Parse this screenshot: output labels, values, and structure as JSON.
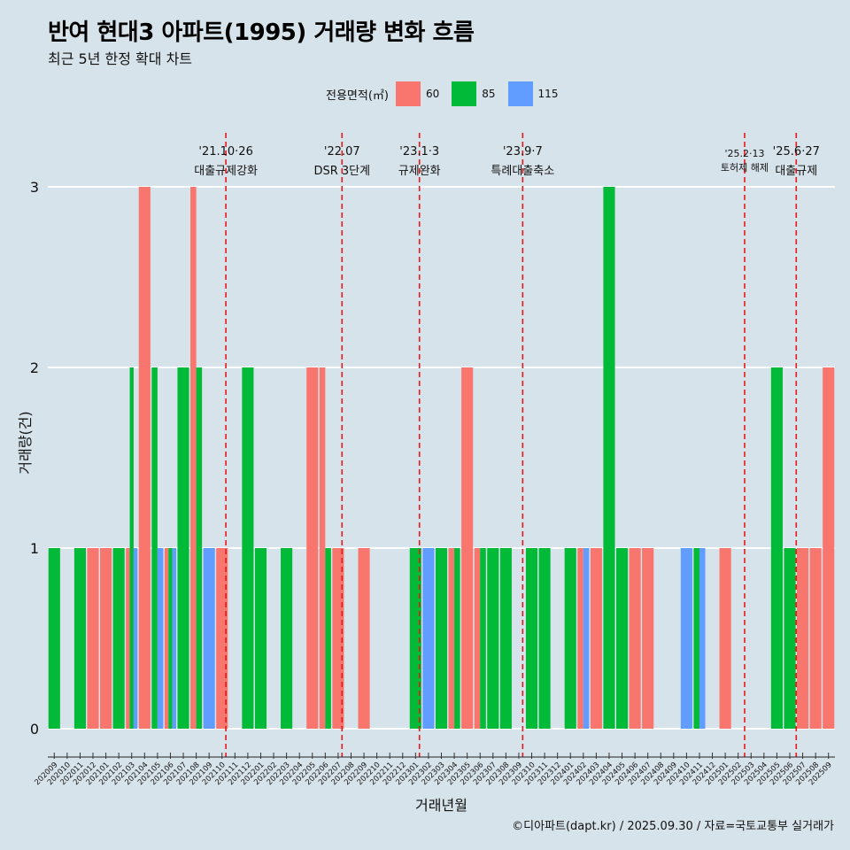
{
  "title": "반여 현대3 아파트(1995) 거래량 변화 흐름",
  "subtitle": "최근 5년 한정 확대 차트",
  "caption": "©디아파트(dapt.kr) / 2025.09.30 / 자료=국토교통부 실거래가",
  "legend": {
    "title": "전용면적(㎡)",
    "items": [
      {
        "label": "60",
        "color": "#f8766d"
      },
      {
        "label": "85",
        "color": "#00ba38"
      },
      {
        "label": "115",
        "color": "#619cff"
      }
    ]
  },
  "chart_data": {
    "type": "bar",
    "xlabel": "거래년월",
    "ylabel": "거래량(건)",
    "ylim": [
      0,
      3
    ],
    "yticks": [
      0,
      1,
      2,
      3
    ],
    "series_colors": {
      "60": "#f8766d",
      "85": "#00ba38",
      "115": "#619cff"
    },
    "months": [
      "202009",
      "202010",
      "202011",
      "202012",
      "202101",
      "202102",
      "202103",
      "202104",
      "202105",
      "202106",
      "202107",
      "202108",
      "202109",
      "202110",
      "202111",
      "202112",
      "202201",
      "202202",
      "202203",
      "202204",
      "202205",
      "202206",
      "202207",
      "202208",
      "202209",
      "202210",
      "202211",
      "202212",
      "202301",
      "202302",
      "202303",
      "202304",
      "202305",
      "202306",
      "202307",
      "202308",
      "202309",
      "202310",
      "202311",
      "202312",
      "202401",
      "202402",
      "202403",
      "202404",
      "202405",
      "202406",
      "202407",
      "202408",
      "202409",
      "202410",
      "202411",
      "202412",
      "202501",
      "202502",
      "202503",
      "202504",
      "202505",
      "202506",
      "202507",
      "202508",
      "202509"
    ],
    "tick_labels": [
      "202009",
      "202010",
      "202011",
      "202012",
      "202101",
      "202102",
      "202103",
      "202104",
      "202105",
      "202106",
      "202107",
      "202108",
      "202109",
      "202110",
      "202111",
      "202112",
      "202201",
      "202202",
      "202203",
      "202204",
      "202205",
      "202206",
      "202207",
      "202208",
      "202209",
      "202210",
      "202211",
      "202212",
      "202301",
      "202302",
      "202303",
      "202304",
      "202305",
      "202306",
      "202307",
      "202308",
      "202309",
      "202310",
      "202311",
      "202312",
      "202401",
      "202402",
      "202403",
      "202404",
      "202405",
      "202406",
      "202407",
      "202408",
      "202409",
      "202410",
      "202411",
      "202412",
      "202501",
      "202502",
      "202503",
      "202504",
      "202505",
      "202506",
      "202507",
      "202508",
      "202509"
    ],
    "bars": [
      {
        "month": "202009",
        "groups": [
          {
            "area": "85",
            "value": 1
          }
        ]
      },
      {
        "month": "202011",
        "groups": [
          {
            "area": "85",
            "value": 1
          }
        ]
      },
      {
        "month": "202012",
        "groups": [
          {
            "area": "60",
            "value": 1
          }
        ]
      },
      {
        "month": "202101",
        "groups": [
          {
            "area": "60",
            "value": 1
          }
        ]
      },
      {
        "month": "202102",
        "groups": [
          {
            "area": "85",
            "value": 1
          }
        ]
      },
      {
        "month": "202103",
        "groups": [
          {
            "area": "60",
            "value": 1
          },
          {
            "area": "85",
            "value": 2
          },
          {
            "area": "115",
            "value": 1
          }
        ]
      },
      {
        "month": "202104",
        "groups": [
          {
            "area": "60",
            "value": 3
          }
        ]
      },
      {
        "month": "202105",
        "groups": [
          {
            "area": "85",
            "value": 2
          },
          {
            "area": "115",
            "value": 1
          }
        ]
      },
      {
        "month": "202106",
        "groups": [
          {
            "area": "60",
            "value": 1
          },
          {
            "area": "85",
            "value": 1
          },
          {
            "area": "115",
            "value": 1
          }
        ]
      },
      {
        "month": "202107",
        "groups": [
          {
            "area": "85",
            "value": 2
          }
        ]
      },
      {
        "month": "202108",
        "groups": [
          {
            "area": "60",
            "value": 3
          },
          {
            "area": "85",
            "value": 2
          }
        ]
      },
      {
        "month": "202109",
        "groups": [
          {
            "area": "115",
            "value": 1
          }
        ]
      },
      {
        "month": "202110",
        "groups": [
          {
            "area": "60",
            "value": 1
          }
        ]
      },
      {
        "month": "202112",
        "groups": [
          {
            "area": "85",
            "value": 2
          }
        ]
      },
      {
        "month": "202201",
        "groups": [
          {
            "area": "85",
            "value": 1
          }
        ]
      },
      {
        "month": "202203",
        "groups": [
          {
            "area": "85",
            "value": 1
          }
        ]
      },
      {
        "month": "202205",
        "groups": [
          {
            "area": "60",
            "value": 2
          }
        ]
      },
      {
        "month": "202206",
        "groups": [
          {
            "area": "60",
            "value": 2
          },
          {
            "area": "85",
            "value": 1
          }
        ]
      },
      {
        "month": "202207",
        "groups": [
          {
            "area": "60",
            "value": 1
          }
        ]
      },
      {
        "month": "202209",
        "groups": [
          {
            "area": "60",
            "value": 1
          }
        ]
      },
      {
        "month": "202301",
        "groups": [
          {
            "area": "85",
            "value": 1
          }
        ]
      },
      {
        "month": "202302",
        "groups": [
          {
            "area": "115",
            "value": 1
          }
        ]
      },
      {
        "month": "202303",
        "groups": [
          {
            "area": "85",
            "value": 1
          }
        ]
      },
      {
        "month": "202304",
        "groups": [
          {
            "area": "60",
            "value": 1
          },
          {
            "area": "85",
            "value": 1
          }
        ]
      },
      {
        "month": "202305",
        "groups": [
          {
            "area": "60",
            "value": 2
          }
        ]
      },
      {
        "month": "202306",
        "groups": [
          {
            "area": "60",
            "value": 1
          },
          {
            "area": "85",
            "value": 1
          }
        ]
      },
      {
        "month": "202307",
        "groups": [
          {
            "area": "85",
            "value": 1
          }
        ]
      },
      {
        "month": "202308",
        "groups": [
          {
            "area": "85",
            "value": 1
          }
        ]
      },
      {
        "month": "202310",
        "groups": [
          {
            "area": "85",
            "value": 1
          }
        ]
      },
      {
        "month": "202311",
        "groups": [
          {
            "area": "85",
            "value": 1
          }
        ]
      },
      {
        "month": "202401",
        "groups": [
          {
            "area": "85",
            "value": 1
          }
        ]
      },
      {
        "month": "202402",
        "groups": [
          {
            "area": "60",
            "value": 1
          },
          {
            "area": "115",
            "value": 1
          }
        ]
      },
      {
        "month": "202403",
        "groups": [
          {
            "area": "60",
            "value": 1
          }
        ]
      },
      {
        "month": "202404",
        "groups": [
          {
            "area": "85",
            "value": 3
          }
        ]
      },
      {
        "month": "202405",
        "groups": [
          {
            "area": "85",
            "value": 1
          }
        ]
      },
      {
        "month": "202406",
        "groups": [
          {
            "area": "60",
            "value": 1
          }
        ]
      },
      {
        "month": "202407",
        "groups": [
          {
            "area": "60",
            "value": 1
          }
        ]
      },
      {
        "month": "202410",
        "groups": [
          {
            "area": "115",
            "value": 1
          }
        ]
      },
      {
        "month": "202411",
        "groups": [
          {
            "area": "85",
            "value": 1
          },
          {
            "area": "115",
            "value": 1
          }
        ]
      },
      {
        "month": "202501",
        "groups": [
          {
            "area": "60",
            "value": 1
          }
        ]
      },
      {
        "month": "202505",
        "groups": [
          {
            "area": "85",
            "value": 2
          }
        ]
      },
      {
        "month": "202506",
        "groups": [
          {
            "area": "85",
            "value": 1
          }
        ]
      },
      {
        "month": "202507",
        "groups": [
          {
            "area": "60",
            "value": 1
          }
        ]
      },
      {
        "month": "202508",
        "groups": [
          {
            "area": "60",
            "value": 1
          }
        ]
      },
      {
        "month": "202509",
        "groups": [
          {
            "area": "60",
            "value": 2
          }
        ]
      }
    ],
    "annotations": [
      {
        "month_index": 13.3,
        "date": "'21.10·26",
        "label": "대출규제강화"
      },
      {
        "month_index": 22.3,
        "date": "'22.07",
        "label": "DSR 3단계"
      },
      {
        "month_index": 28.3,
        "date": "'23.1·3",
        "label": "규제완화"
      },
      {
        "month_index": 36.3,
        "date": "'23.9·7",
        "label": "특례대출축소"
      },
      {
        "month_index": 53.5,
        "date": "'25.2·13",
        "label": "토허제 해제"
      },
      {
        "month_index": 57.5,
        "date": "'25.6·27",
        "label": "대출규제"
      }
    ]
  }
}
